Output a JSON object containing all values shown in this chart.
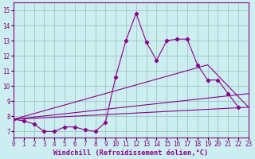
{
  "xlabel": "Windchill (Refroidissement éolien,°C)",
  "background_color": "#cceef0",
  "line_color": "#880088",
  "grid_color": "#99bbbb",
  "xlim": [
    0,
    23
  ],
  "ylim": [
    6.6,
    15.5
  ],
  "x_ticks": [
    0,
    1,
    2,
    3,
    4,
    5,
    6,
    7,
    8,
    9,
    10,
    11,
    12,
    13,
    14,
    15,
    16,
    17,
    18,
    19,
    20,
    21,
    22,
    23
  ],
  "y_ticks": [
    7,
    8,
    9,
    10,
    11,
    12,
    13,
    14,
    15
  ],
  "main_x": [
    0,
    1,
    2,
    3,
    4,
    5,
    6,
    7,
    8,
    9,
    10,
    11,
    12,
    13,
    14,
    15,
    16,
    17,
    18,
    19,
    20,
    21,
    22
  ],
  "main_y": [
    7.8,
    7.7,
    7.5,
    7.0,
    7.0,
    7.3,
    7.3,
    7.1,
    7.0,
    7.6,
    10.6,
    13.0,
    14.8,
    12.9,
    11.7,
    13.0,
    13.1,
    13.1,
    11.4,
    10.4,
    10.4,
    9.5,
    8.6
  ],
  "line1_x": [
    0,
    23
  ],
  "line1_y": [
    7.8,
    8.6
  ],
  "line2_x": [
    0,
    23
  ],
  "line2_y": [
    7.8,
    9.5
  ],
  "line3_x": [
    0,
    19,
    23
  ],
  "line3_y": [
    7.8,
    11.4,
    8.6
  ],
  "font_family": "monospace",
  "tick_fontsize": 5.5,
  "xlabel_fontsize": 6.2
}
